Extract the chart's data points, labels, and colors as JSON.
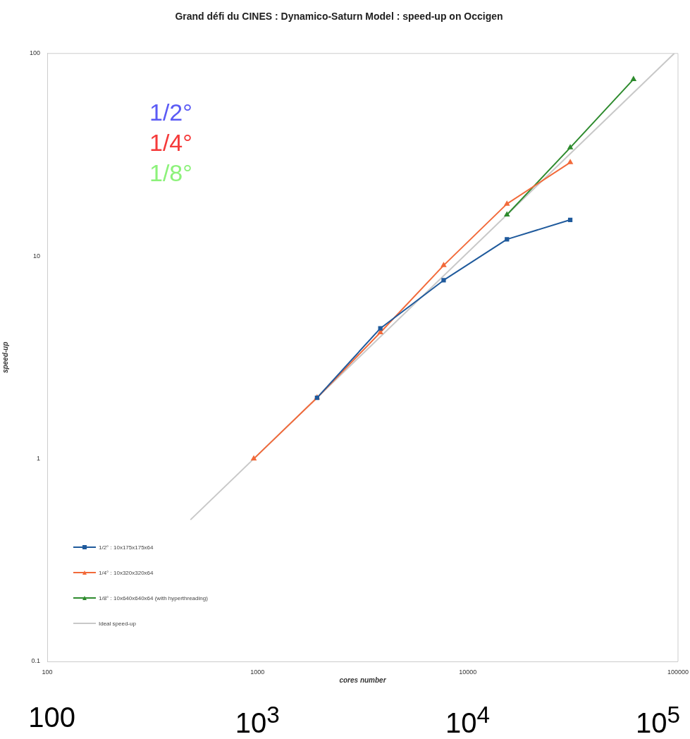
{
  "chart_data": {
    "type": "line",
    "title": "Grand défi du CINES : Dynamico-Saturn Model : speed-up on Occigen",
    "xlabel": "cores number",
    "ylabel": "speed-up",
    "log": "xy",
    "xlim": [
      100,
      100000
    ],
    "xticks": [
      100,
      1000,
      10000,
      100000
    ],
    "ylim": [
      0.1,
      100
    ],
    "yticks": [
      0.1,
      1,
      10,
      100
    ],
    "grid": false,
    "legend": "bottom left",
    "series": [
      {
        "name": "1/2° : 10x175x175x64",
        "color": "#1f5a9c",
        "marker": "square",
        "x": [
          1920,
          3840,
          7680,
          15360,
          30720
        ],
        "values": [
          2.0,
          4.4,
          7.6,
          12.1,
          15.1
        ]
      },
      {
        "name": "1/4° : 10x320x320x64",
        "color": "#f26a3a",
        "marker": "triangle",
        "x": [
          960,
          1920,
          3840,
          7680,
          15360,
          30720
        ],
        "values": [
          1.0,
          2.0,
          4.2,
          9.0,
          18.1,
          29.0
        ]
      },
      {
        "name": "1/8° : 10x640x640x64 (with hyperthreading)",
        "color": "#2e8b2e",
        "marker": "triangle",
        "x": [
          15360,
          30720,
          61440
        ],
        "values": [
          16.0,
          34.3,
          74.6
        ]
      },
      {
        "name": "Ideal speed-up",
        "color": "#c8c8c8",
        "marker": "none",
        "x": [
          480,
          96000
        ],
        "values": [
          0.5,
          100
        ]
      }
    ],
    "annotations": [
      "1/2°",
      "1/4°",
      "1/8°",
      "100",
      "10$^{3}$",
      "10$^{4}$",
      "10$^{5}$"
    ]
  }
}
